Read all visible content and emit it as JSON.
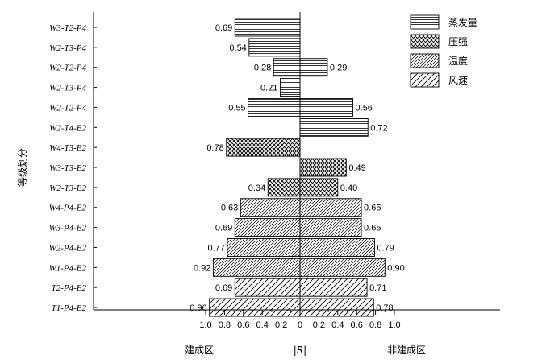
{
  "chart_data": {
    "type": "bar",
    "orientation": "horizontal-diverging",
    "categories": [
      "W3-T2-P4",
      "W2-T3-P4",
      "W2-T2-P4",
      "W2-T3-P4",
      "W2-T2-P4",
      "W2-T4-E2",
      "W4-T3-E2",
      "W3-T3-E2",
      "W2-T3-E2",
      "W4-P4-E2",
      "W3-P4-E2",
      "W2-P4-E2",
      "W1-P4-E2",
      "T2-P4-E2",
      "T1-P4-E2"
    ],
    "left_values": [
      0.69,
      0.54,
      0.28,
      0.21,
      0.55,
      null,
      0.78,
      null,
      0.34,
      0.63,
      0.69,
      0.77,
      0.92,
      0.69,
      0.96
    ],
    "right_values": [
      null,
      null,
      0.29,
      null,
      0.56,
      0.72,
      null,
      0.49,
      0.4,
      0.65,
      0.65,
      0.79,
      0.9,
      0.71,
      0.78
    ],
    "factor": [
      "蒸发量",
      "蒸发量",
      "蒸发量",
      "蒸发量",
      "蒸发量",
      "蒸发量",
      "压强",
      "压强",
      "压强",
      "温度",
      "温度",
      "温度",
      "温度",
      "风速",
      "风速"
    ],
    "legend": [
      {
        "name": "蒸发量",
        "pattern": "horizontal"
      },
      {
        "name": "压强",
        "pattern": "crosshatch"
      },
      {
        "name": "温度",
        "pattern": "diagonal-dense"
      },
      {
        "name": "风速",
        "pattern": "diagonal-sparse"
      }
    ],
    "legend_position": "top-right",
    "x_ticks": [
      "1.0",
      "0.8",
      "0.6",
      "0.4",
      "0.2",
      "0",
      "0.2",
      "0.4",
      "0.6",
      "0.8",
      "1.0"
    ],
    "xlim": [
      -1.0,
      1.0
    ],
    "ylabel": "等级划分",
    "xlabel_left": "建成区",
    "xlabel_center": "|R|",
    "xlabel_right": "非建成区",
    "grid": false
  }
}
